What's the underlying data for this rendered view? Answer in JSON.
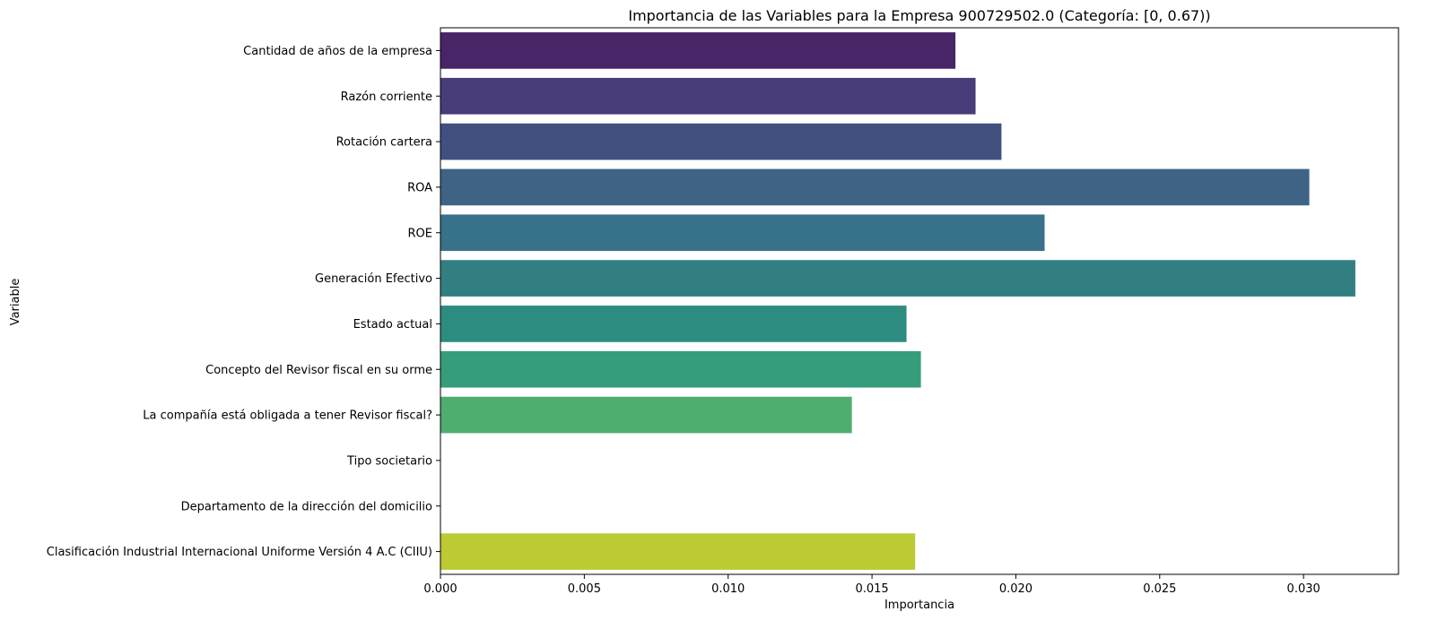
{
  "chart_data": {
    "type": "bar",
    "orientation": "horizontal",
    "title": "Importancia de las Variables para la Empresa 900729502.0 (Categoría: [0, 0.67))",
    "xlabel": "Importancia",
    "ylabel": "Variable",
    "xlim": [
      0,
      0.0333
    ],
    "xticks": [
      0.0,
      0.005,
      0.01,
      0.015,
      0.02,
      0.025,
      0.03
    ],
    "xtick_labels": [
      "0.000",
      "0.005",
      "0.010",
      "0.015",
      "0.020",
      "0.025",
      "0.030"
    ],
    "grid": false,
    "categories": [
      "Cantidad de años de la empresa",
      "Razón corriente",
      "Rotación cartera",
      "ROA",
      "ROE",
      "Generación Efectivo",
      "Estado actual",
      "Concepto del Revisor fiscal en su orme",
      "La compañía está obligada a tener Revisor fiscal?",
      "Tipo societario",
      "Departamento de la dirección del domicilio",
      "Clasificación Industrial Internacional Uniforme Versión 4 A.C (CIIU)"
    ],
    "values": [
      0.0179,
      0.0186,
      0.0195,
      0.0302,
      0.021,
      0.0318,
      0.0162,
      0.0167,
      0.0143,
      0.0,
      0.0,
      0.0165
    ],
    "colors": [
      "#482566",
      "#483d78",
      "#41507f",
      "#3f6384",
      "#38718a",
      "#327f82",
      "#2c8c7f",
      "#369d7c",
      "#4ead6f",
      "#6abf61",
      "#9ac746",
      "#bcca33"
    ]
  }
}
